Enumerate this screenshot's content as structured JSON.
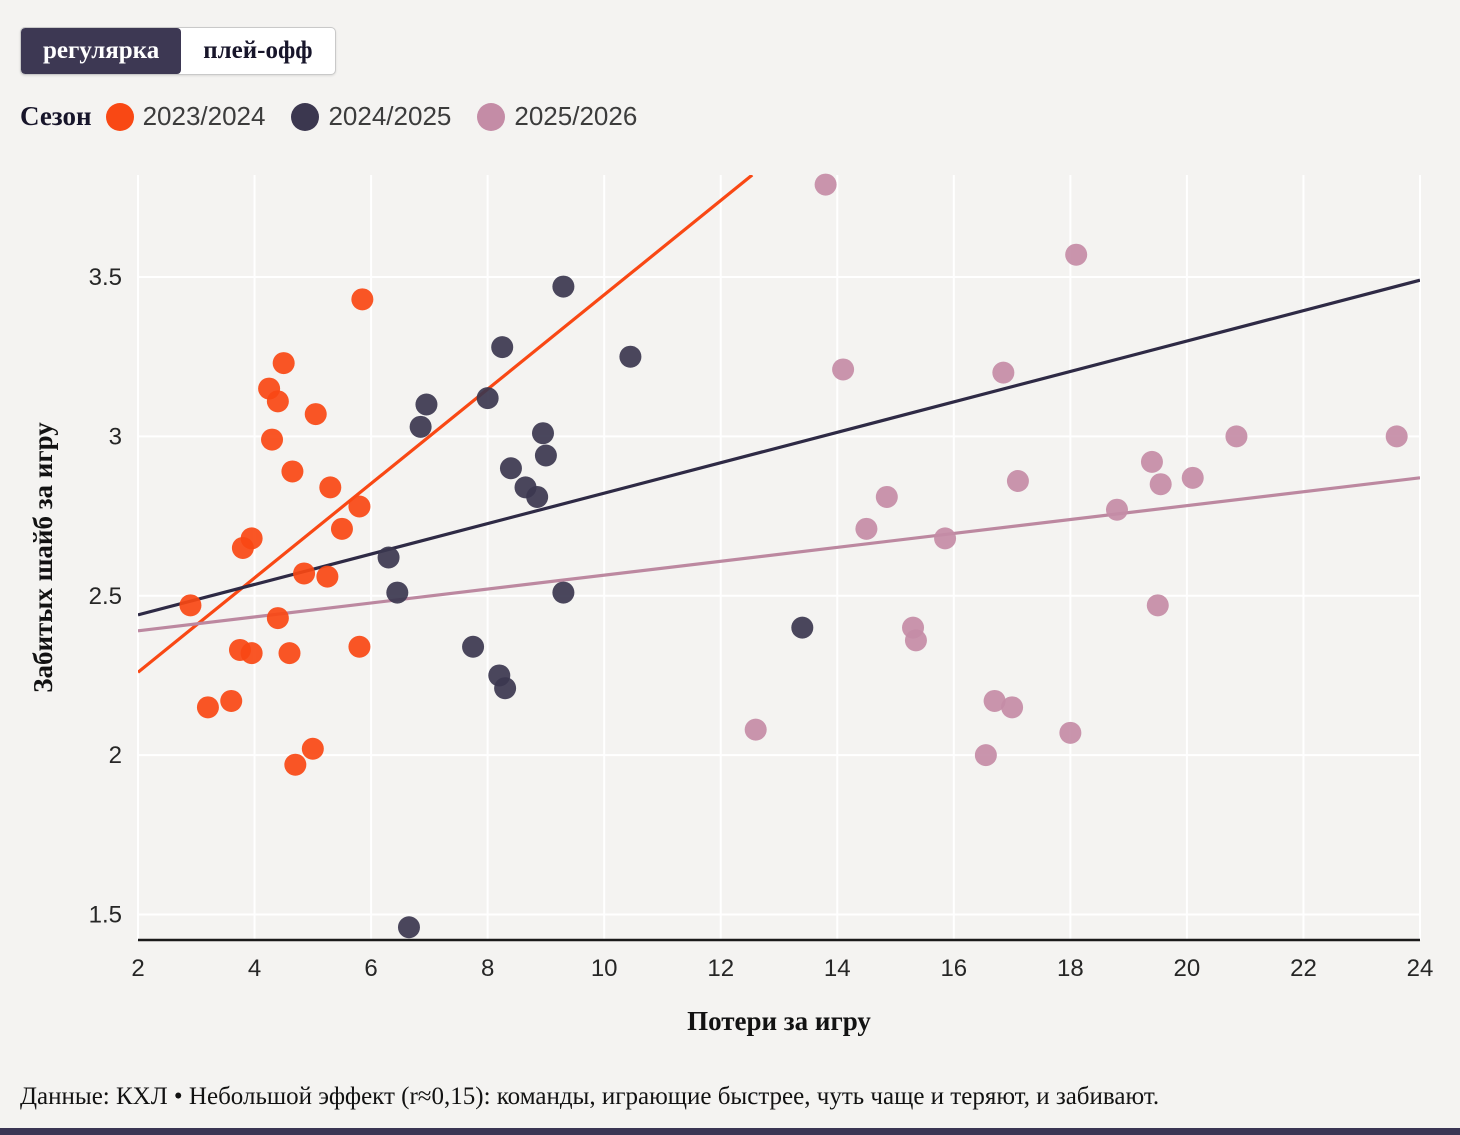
{
  "toggle": {
    "options": [
      {
        "label": "регулярка",
        "selected": true
      },
      {
        "label": "плей-офф",
        "selected": false
      }
    ],
    "selected_bg": "#3d3853"
  },
  "legend": {
    "title": "Сезон",
    "items": [
      {
        "label": "2023/2024",
        "color": "#f94814"
      },
      {
        "label": "2024/2025",
        "color": "#3b374f"
      },
      {
        "label": "2025/2026",
        "color": "#c48ca6"
      }
    ]
  },
  "caption": "Данные: КХЛ • Небольшой эффект (r≈0,15): команды, играющие быстрее, чуть чаще и теряют, и забивают.",
  "chart_data": {
    "type": "scatter",
    "title": "",
    "xlabel": "Потери за игру",
    "ylabel": "Забитых шайб за игру",
    "xlim": [
      2,
      24
    ],
    "ylim": [
      1.42,
      3.82
    ],
    "xticks": [
      2,
      4,
      6,
      8,
      10,
      12,
      14,
      16,
      18,
      20,
      22,
      24
    ],
    "yticks": [
      1.5,
      2,
      2.5,
      3,
      3.5
    ],
    "grid": true,
    "grid_color": "#ffffff",
    "axis_color": "#1a1a1a",
    "legend_position": "top-left",
    "point_radius": 11,
    "point_opacity": 0.92,
    "series": [
      {
        "name": "2023/2024",
        "color": "#f94814",
        "points": [
          [
            2.9,
            2.47
          ],
          [
            3.2,
            2.15
          ],
          [
            3.6,
            2.17
          ],
          [
            3.8,
            2.65
          ],
          [
            3.95,
            2.68
          ],
          [
            3.75,
            2.33
          ],
          [
            3.95,
            2.32
          ],
          [
            4.3,
            2.99
          ],
          [
            4.25,
            3.15
          ],
          [
            4.4,
            3.11
          ],
          [
            4.5,
            3.23
          ],
          [
            4.4,
            2.43
          ],
          [
            4.6,
            2.32
          ],
          [
            4.65,
            2.89
          ],
          [
            4.7,
            1.97
          ],
          [
            4.85,
            2.57
          ],
          [
            5.0,
            2.02
          ],
          [
            5.05,
            3.07
          ],
          [
            5.3,
            2.84
          ],
          [
            5.25,
            2.56
          ],
          [
            5.5,
            2.71
          ],
          [
            5.8,
            2.78
          ],
          [
            5.85,
            3.43
          ],
          [
            5.8,
            2.34
          ]
        ],
        "trend": {
          "x": [
            2,
            12.54
          ],
          "y": [
            2.26,
            3.82
          ]
        }
      },
      {
        "name": "2024/2025",
        "color": "#3b374f",
        "trend_color": "#2e2a45",
        "points": [
          [
            6.65,
            1.46
          ],
          [
            6.3,
            2.62
          ],
          [
            6.45,
            2.51
          ],
          [
            6.85,
            3.03
          ],
          [
            6.95,
            3.1
          ],
          [
            7.75,
            2.34
          ],
          [
            8.0,
            3.12
          ],
          [
            8.25,
            3.28
          ],
          [
            8.2,
            2.25
          ],
          [
            8.3,
            2.21
          ],
          [
            8.4,
            2.9
          ],
          [
            8.65,
            2.84
          ],
          [
            8.85,
            2.81
          ],
          [
            8.95,
            3.01
          ],
          [
            9.0,
            2.94
          ],
          [
            9.3,
            3.47
          ],
          [
            9.3,
            2.51
          ],
          [
            10.45,
            3.25
          ],
          [
            13.4,
            2.4
          ]
        ],
        "trend": {
          "x": [
            2,
            24
          ],
          "y": [
            2.44,
            3.49
          ]
        }
      },
      {
        "name": "2025/2026",
        "color": "#c48ca6",
        "trend_color": "#bc88a0",
        "points": [
          [
            12.6,
            2.08
          ],
          [
            13.8,
            3.79
          ],
          [
            14.1,
            3.21
          ],
          [
            14.5,
            2.71
          ],
          [
            14.85,
            2.81
          ],
          [
            15.3,
            2.4
          ],
          [
            15.35,
            2.36
          ],
          [
            15.85,
            2.68
          ],
          [
            16.55,
            2.0
          ],
          [
            16.7,
            2.17
          ],
          [
            16.85,
            3.2
          ],
          [
            17.0,
            2.15
          ],
          [
            17.1,
            2.86
          ],
          [
            18.0,
            2.07
          ],
          [
            18.1,
            3.57
          ],
          [
            18.8,
            2.77
          ],
          [
            19.4,
            2.92
          ],
          [
            19.55,
            2.85
          ],
          [
            19.5,
            2.47
          ],
          [
            20.1,
            2.87
          ],
          [
            20.85,
            3.0
          ],
          [
            23.6,
            3.0
          ]
        ],
        "trend": {
          "x": [
            2,
            24
          ],
          "y": [
            2.39,
            2.87
          ]
        }
      }
    ]
  }
}
